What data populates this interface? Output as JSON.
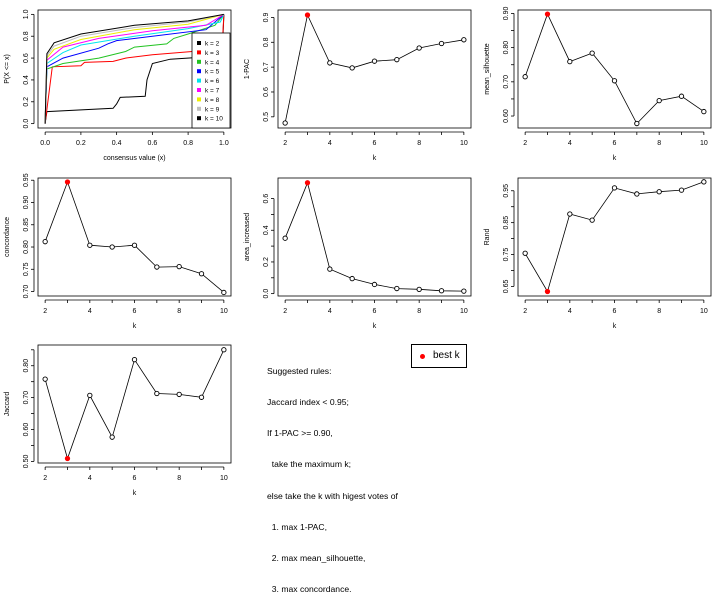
{
  "colors": {
    "best": "#ff0000",
    "line": "#000000"
  },
  "rules": {
    "lines": [
      "Suggested rules:",
      "Jaccard index < 0.95;",
      "If 1-PAC >= 0.90,",
      "  take the maximum k;",
      "else take the k with higest votes of",
      "  1. max 1-PAC,",
      "  2. max mean_silhouette,",
      "  3. max concordance."
    ]
  },
  "best_k_legend": {
    "label": "best k"
  },
  "chart_data": [
    {
      "type": "line",
      "xlabel": "consensus value (x)",
      "ylabel": "P(X <= x)",
      "xlim": [
        0,
        1
      ],
      "ylim": [
        0,
        1
      ],
      "x_ticks": [
        "0.0",
        "0.2",
        "0.4",
        "0.6",
        "0.8",
        "1.0"
      ],
      "y_ticks": [
        "0.0",
        "0.2",
        "0.4",
        "0.6",
        "0.8",
        "1.0"
      ],
      "legend_position": "right",
      "series": [
        {
          "name": "k = 2",
          "color": "#000000",
          "points": [
            [
              0,
              0
            ],
            [
              0.01,
              0.11
            ],
            [
              0.38,
              0.14
            ],
            [
              0.4,
              0.18
            ],
            [
              0.42,
              0.24
            ],
            [
              0.56,
              0.25
            ],
            [
              0.57,
              0.4
            ],
            [
              0.6,
              0.55
            ],
            [
              0.7,
              0.59
            ],
            [
              0.99,
              0.62
            ],
            [
              1,
              1
            ]
          ]
        },
        {
          "name": "k = 3",
          "color": "#ff0000",
          "points": [
            [
              0,
              0
            ],
            [
              0.04,
              0.52
            ],
            [
              0.2,
              0.53
            ],
            [
              0.22,
              0.56
            ],
            [
              0.38,
              0.57
            ],
            [
              0.45,
              0.6
            ],
            [
              0.6,
              0.63
            ],
            [
              0.9,
              0.67
            ],
            [
              0.99,
              0.7
            ],
            [
              1,
              1
            ]
          ]
        },
        {
          "name": "k = 4",
          "color": "#22c322",
          "points": [
            [
              0,
              0
            ],
            [
              0.01,
              0.5
            ],
            [
              0.1,
              0.55
            ],
            [
              0.3,
              0.6
            ],
            [
              0.45,
              0.66
            ],
            [
              0.5,
              0.7
            ],
            [
              0.68,
              0.73
            ],
            [
              0.72,
              0.78
            ],
            [
              0.8,
              0.82
            ],
            [
              0.95,
              0.9
            ],
            [
              1,
              1
            ]
          ]
        },
        {
          "name": "k = 5",
          "color": "#0000ff",
          "points": [
            [
              0,
              0
            ],
            [
              0.01,
              0.52
            ],
            [
              0.1,
              0.6
            ],
            [
              0.3,
              0.69
            ],
            [
              0.35,
              0.73
            ],
            [
              0.4,
              0.76
            ],
            [
              0.6,
              0.8
            ],
            [
              0.9,
              0.86
            ],
            [
              1,
              1
            ]
          ]
        },
        {
          "name": "k = 6",
          "color": "#00e5ee",
          "points": [
            [
              0,
              0
            ],
            [
              0.01,
              0.55
            ],
            [
              0.1,
              0.65
            ],
            [
              0.2,
              0.72
            ],
            [
              0.5,
              0.8
            ],
            [
              0.8,
              0.87
            ],
            [
              0.98,
              0.93
            ],
            [
              1,
              1
            ]
          ]
        },
        {
          "name": "k = 7",
          "color": "#ff00ff",
          "points": [
            [
              0,
              0
            ],
            [
              0.01,
              0.58
            ],
            [
              0.1,
              0.7
            ],
            [
              0.3,
              0.78
            ],
            [
              0.6,
              0.85
            ],
            [
              0.9,
              0.9
            ],
            [
              1,
              1
            ]
          ]
        },
        {
          "name": "k = 8",
          "color": "#eeee00",
          "points": [
            [
              0,
              0
            ],
            [
              0.01,
              0.6
            ],
            [
              0.05,
              0.68
            ],
            [
              0.2,
              0.77
            ],
            [
              0.5,
              0.86
            ],
            [
              0.8,
              0.91
            ],
            [
              1,
              1
            ]
          ]
        },
        {
          "name": "k = 9",
          "color": "#bebebe",
          "points": [
            [
              0,
              0
            ],
            [
              0.01,
              0.62
            ],
            [
              0.05,
              0.71
            ],
            [
              0.2,
              0.8
            ],
            [
              0.5,
              0.88
            ],
            [
              0.8,
              0.93
            ],
            [
              1,
              1
            ]
          ]
        },
        {
          "name": "k = 10",
          "color": "#000000",
          "points": [
            [
              0,
              0
            ],
            [
              0.01,
              0.64
            ],
            [
              0.05,
              0.74
            ],
            [
              0.2,
              0.82
            ],
            [
              0.5,
              0.9
            ],
            [
              0.8,
              0.94
            ],
            [
              1,
              1
            ]
          ]
        }
      ]
    },
    {
      "type": "line",
      "xlabel": "k",
      "ylabel": "1-PAC",
      "x": [
        2,
        3,
        4,
        5,
        6,
        7,
        8,
        9,
        10
      ],
      "values": [
        0.475,
        0.91,
        0.717,
        0.697,
        0.724,
        0.73,
        0.777,
        0.795,
        0.81
      ],
      "best_k": 3,
      "ylim": [
        0.455,
        0.93
      ],
      "y_ticks": [
        0.5,
        0.6,
        0.7,
        0.8,
        0.9
      ],
      "y_tick_labels": [
        "0.5",
        "0.6",
        "0.7",
        "0.8",
        "0.9"
      ]
    },
    {
      "type": "line",
      "xlabel": "k",
      "ylabel": "mean_silhouette",
      "x": [
        2,
        3,
        4,
        5,
        6,
        7,
        8,
        9,
        10
      ],
      "values": [
        0.715,
        0.898,
        0.759,
        0.784,
        0.703,
        0.578,
        0.645,
        0.658,
        0.613
      ],
      "best_k": 3,
      "ylim": [
        0.565,
        0.91
      ],
      "y_ticks": [
        0.6,
        0.65,
        0.7,
        0.75,
        0.8,
        0.85,
        0.9
      ],
      "y_tick_labels": [
        "0.60",
        "",
        "0.70",
        "",
        "0.80",
        "",
        "0.90"
      ]
    },
    {
      "type": "line",
      "xlabel": "k",
      "ylabel": "concordance",
      "x": [
        2,
        3,
        4,
        5,
        6,
        7,
        8,
        9,
        10
      ],
      "values": [
        0.812,
        0.946,
        0.804,
        0.8,
        0.804,
        0.755,
        0.756,
        0.74,
        0.698
      ],
      "best_k": 3,
      "ylim": [
        0.69,
        0.955
      ],
      "y_ticks": [
        0.7,
        0.75,
        0.8,
        0.85,
        0.9,
        0.95
      ],
      "y_tick_labels": [
        "0.70",
        "0.75",
        "0.80",
        "0.85",
        "0.90",
        "0.95"
      ]
    },
    {
      "type": "line",
      "xlabel": "k",
      "ylabel": "area_increased",
      "x": [
        2,
        3,
        4,
        5,
        6,
        7,
        8,
        9,
        10
      ],
      "values": [
        0.35,
        0.7,
        0.155,
        0.095,
        0.058,
        0.032,
        0.027,
        0.018,
        0.016
      ],
      "best_k": 3,
      "ylim": [
        -0.015,
        0.73
      ],
      "y_ticks": [
        0,
        0.1,
        0.2,
        0.3,
        0.4,
        0.5,
        0.6
      ],
      "y_tick_labels": [
        "0.0",
        "",
        "0.2",
        "",
        "0.4",
        "",
        "0.6"
      ]
    },
    {
      "type": "line",
      "xlabel": "k",
      "ylabel": "Rand",
      "x": [
        2,
        3,
        4,
        5,
        6,
        7,
        8,
        9,
        10
      ],
      "values": [
        0.754,
        0.634,
        0.877,
        0.858,
        0.959,
        0.94,
        0.947,
        0.952,
        0.978
      ],
      "best_k": 3,
      "ylim": [
        0.62,
        0.99
      ],
      "y_ticks": [
        0.65,
        0.7,
        0.75,
        0.8,
        0.85,
        0.9,
        0.95
      ],
      "y_tick_labels": [
        "0.65",
        "",
        "0.75",
        "",
        "0.85",
        "",
        "0.95"
      ]
    },
    {
      "type": "line",
      "xlabel": "k",
      "ylabel": "Jaccard",
      "x": [
        2,
        3,
        4,
        5,
        6,
        7,
        8,
        9,
        10
      ],
      "values": [
        0.758,
        0.509,
        0.707,
        0.576,
        0.819,
        0.713,
        0.71,
        0.701,
        0.85
      ],
      "best_k": 3,
      "ylim": [
        0.495,
        0.865
      ],
      "y_ticks": [
        0.5,
        0.55,
        0.6,
        0.65,
        0.7,
        0.75,
        0.8,
        0.85
      ],
      "y_tick_labels": [
        "0.50",
        "",
        "0.60",
        "",
        "0.70",
        "",
        "0.80",
        ""
      ]
    }
  ],
  "k_axis": {
    "ticks": [
      2,
      3,
      4,
      5,
      6,
      7,
      8,
      9,
      10
    ],
    "tick_labels": [
      "2",
      "",
      "4",
      "",
      "6",
      "",
      "8",
      "",
      "10"
    ]
  }
}
